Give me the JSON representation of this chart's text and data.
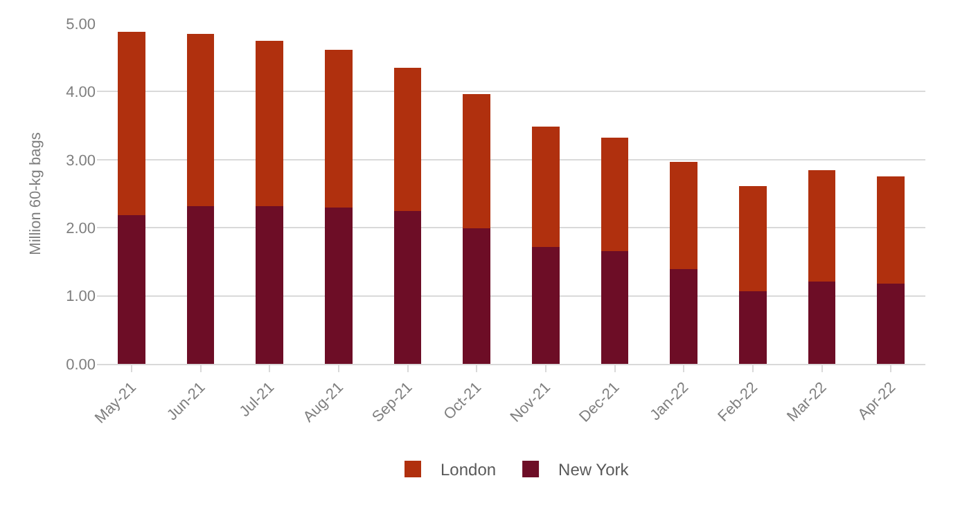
{
  "chart_data": {
    "type": "bar",
    "stacked": true,
    "ylabel": "Million 60-kg bags",
    "categories": [
      "May-21",
      "Jun-21",
      "Jul-21",
      "Aug-21",
      "Sep-21",
      "Oct-21",
      "Nov-21",
      "Dec-21",
      "Jan-22",
      "Feb-22",
      "Mar-22",
      "Apr-22"
    ],
    "series": [
      {
        "name": "New York",
        "color": "#6d0d26",
        "values": [
          2.19,
          2.32,
          2.32,
          2.3,
          2.25,
          1.99,
          1.72,
          1.66,
          1.39,
          1.07,
          1.21,
          1.18
        ]
      },
      {
        "name": "London",
        "color": "#b0300e",
        "values": [
          2.69,
          2.53,
          2.43,
          2.31,
          2.1,
          1.97,
          1.77,
          1.66,
          1.58,
          1.54,
          1.64,
          1.57
        ]
      }
    ],
    "ylim": [
      0,
      5
    ],
    "yticks": [
      {
        "value": 0,
        "label": "0.00"
      },
      {
        "value": 1,
        "label": "1.00"
      },
      {
        "value": 2,
        "label": "2.00"
      },
      {
        "value": 3,
        "label": "3.00"
      },
      {
        "value": 4,
        "label": "4.00"
      },
      {
        "value": 5,
        "label": "5.00"
      }
    ],
    "grid": "y",
    "legend": "bottom"
  }
}
